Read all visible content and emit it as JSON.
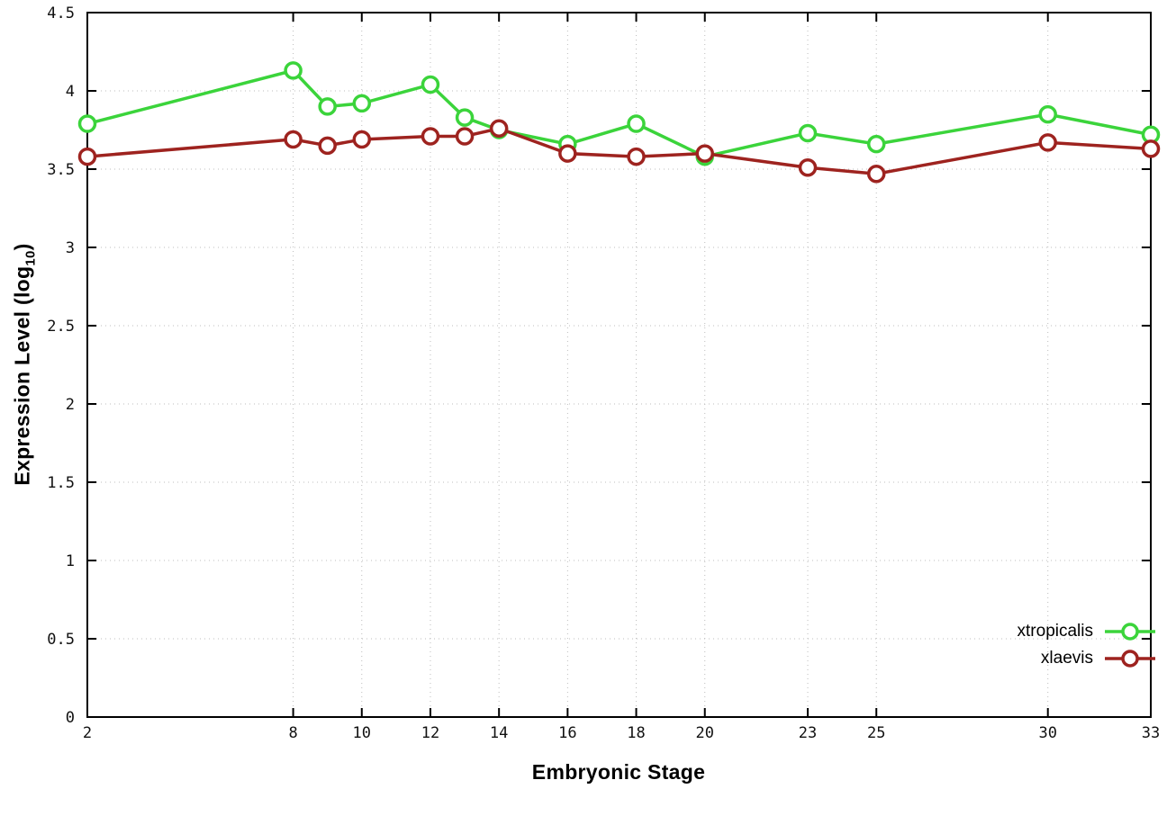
{
  "chart_data": {
    "type": "line",
    "title": "",
    "xlabel": "Embryonic Stage",
    "ylabel_prefix": "Expression Level (log",
    "ylabel_sub": "10",
    "ylabel_suffix": ")",
    "xlim": [
      2,
      33
    ],
    "ylim": [
      0,
      4.5
    ],
    "grid": true,
    "legend_position": "bottom-right",
    "x_ticks": [
      2,
      8,
      10,
      12,
      14,
      16,
      18,
      20,
      23,
      25,
      30,
      33
    ],
    "y_ticks": [
      0,
      0.5,
      1,
      1.5,
      2,
      2.5,
      3,
      3.5,
      4,
      4.5
    ],
    "y_tick_labels": [
      "0",
      "0.5",
      "1",
      "1.5",
      "2",
      "2.5",
      "3",
      "3.5",
      "4",
      "4.5"
    ],
    "x": [
      2,
      8,
      9,
      10,
      12,
      13,
      14,
      16,
      18,
      20,
      23,
      25,
      30,
      33
    ],
    "series": [
      {
        "name": "xtropicalis",
        "color": "#3bd43b",
        "values": [
          3.79,
          4.13,
          3.9,
          3.92,
          4.04,
          3.83,
          3.75,
          3.66,
          3.79,
          3.58,
          3.73,
          3.66,
          3.85,
          3.72
        ]
      },
      {
        "name": "xlaevis",
        "color": "#9e231f",
        "values": [
          3.58,
          3.69,
          3.65,
          3.69,
          3.71,
          3.71,
          3.76,
          3.6,
          3.58,
          3.6,
          3.51,
          3.47,
          3.67,
          3.63
        ]
      }
    ]
  }
}
